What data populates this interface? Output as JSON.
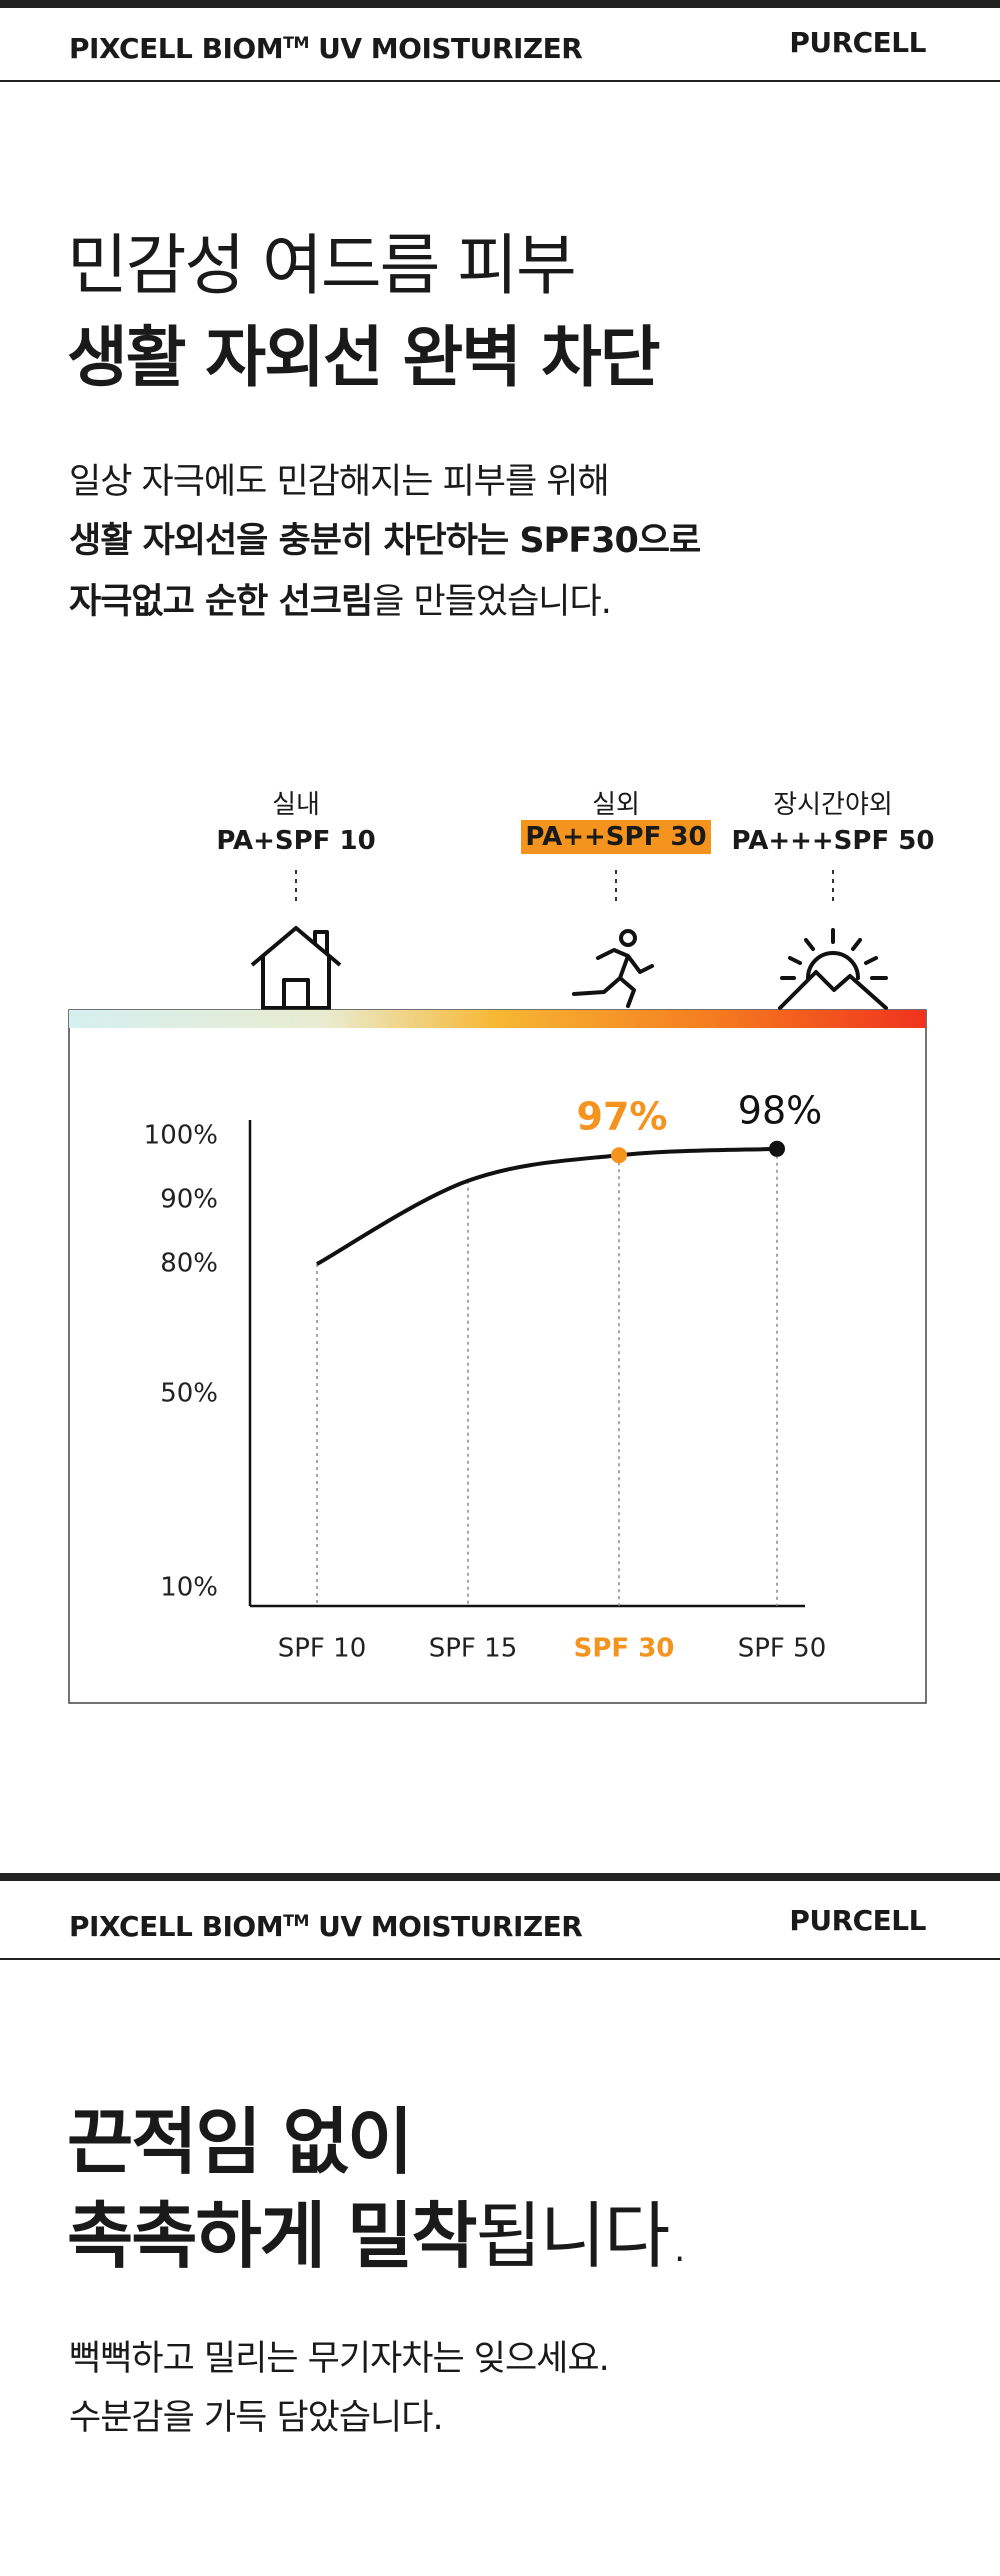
{
  "header_1": {
    "title": "PIXCELL BIOM",
    "tm": "TM",
    "title_rest": " UV MOISTURIZER",
    "brand": "PURCELL"
  },
  "section_1": {
    "heading": [
      "민감성 여드름 피부",
      "생활 자외선 완벽 차단"
    ],
    "paragraph": {
      "line_1": "일상 자극에도 민감해지는 피부를 위해",
      "line_2": "생활 자외선을 충분히 차단하는 SPF30으로",
      "line_3_bold": "자극없고 순한 선크림",
      "line_3_rest": "을 만들었습니다."
    },
    "environments": [
      {
        "place": "실내",
        "rating": "PA+SPF 10"
      },
      {
        "place": "실외",
        "rating": "PA++SPF 30"
      },
      {
        "place": "장시간야외",
        "rating": "PA+++SPF 50"
      }
    ]
  },
  "chart_data": {
    "type": "line",
    "categories": [
      "SPF 10",
      "SPF 15",
      "SPF 30",
      "SPF 50"
    ],
    "values": [
      80,
      93,
      97,
      98
    ],
    "value_labels": [
      null,
      null,
      "97%",
      "98%"
    ],
    "color": "#111111",
    "highlight_index": 2,
    "highlight_color": "#f5931f",
    "yticks": [
      {
        "value": 10,
        "label": "10%"
      },
      {
        "value": 50,
        "label": "50%"
      },
      {
        "value": 80,
        "label": "80%"
      },
      {
        "value": 90,
        "label": "90%"
      },
      {
        "value": 100,
        "label": "100%"
      }
    ]
  },
  "header_2": {
    "title": "PIXCELL BIOM",
    "tm": "TM",
    "title_rest": " UV MOISTURIZER",
    "brand": "PURCELL"
  },
  "section_2": {
    "heading_line_1": "끈적임 없이",
    "heading_line_2_bold": "촉촉하게 밀착",
    "heading_line_2_rest": "됩니다.",
    "paragraph": [
      "뻑뻑하고 밀리는 무기자차는 잊으세요.",
      "수분감을 가득 담았습니다."
    ]
  }
}
